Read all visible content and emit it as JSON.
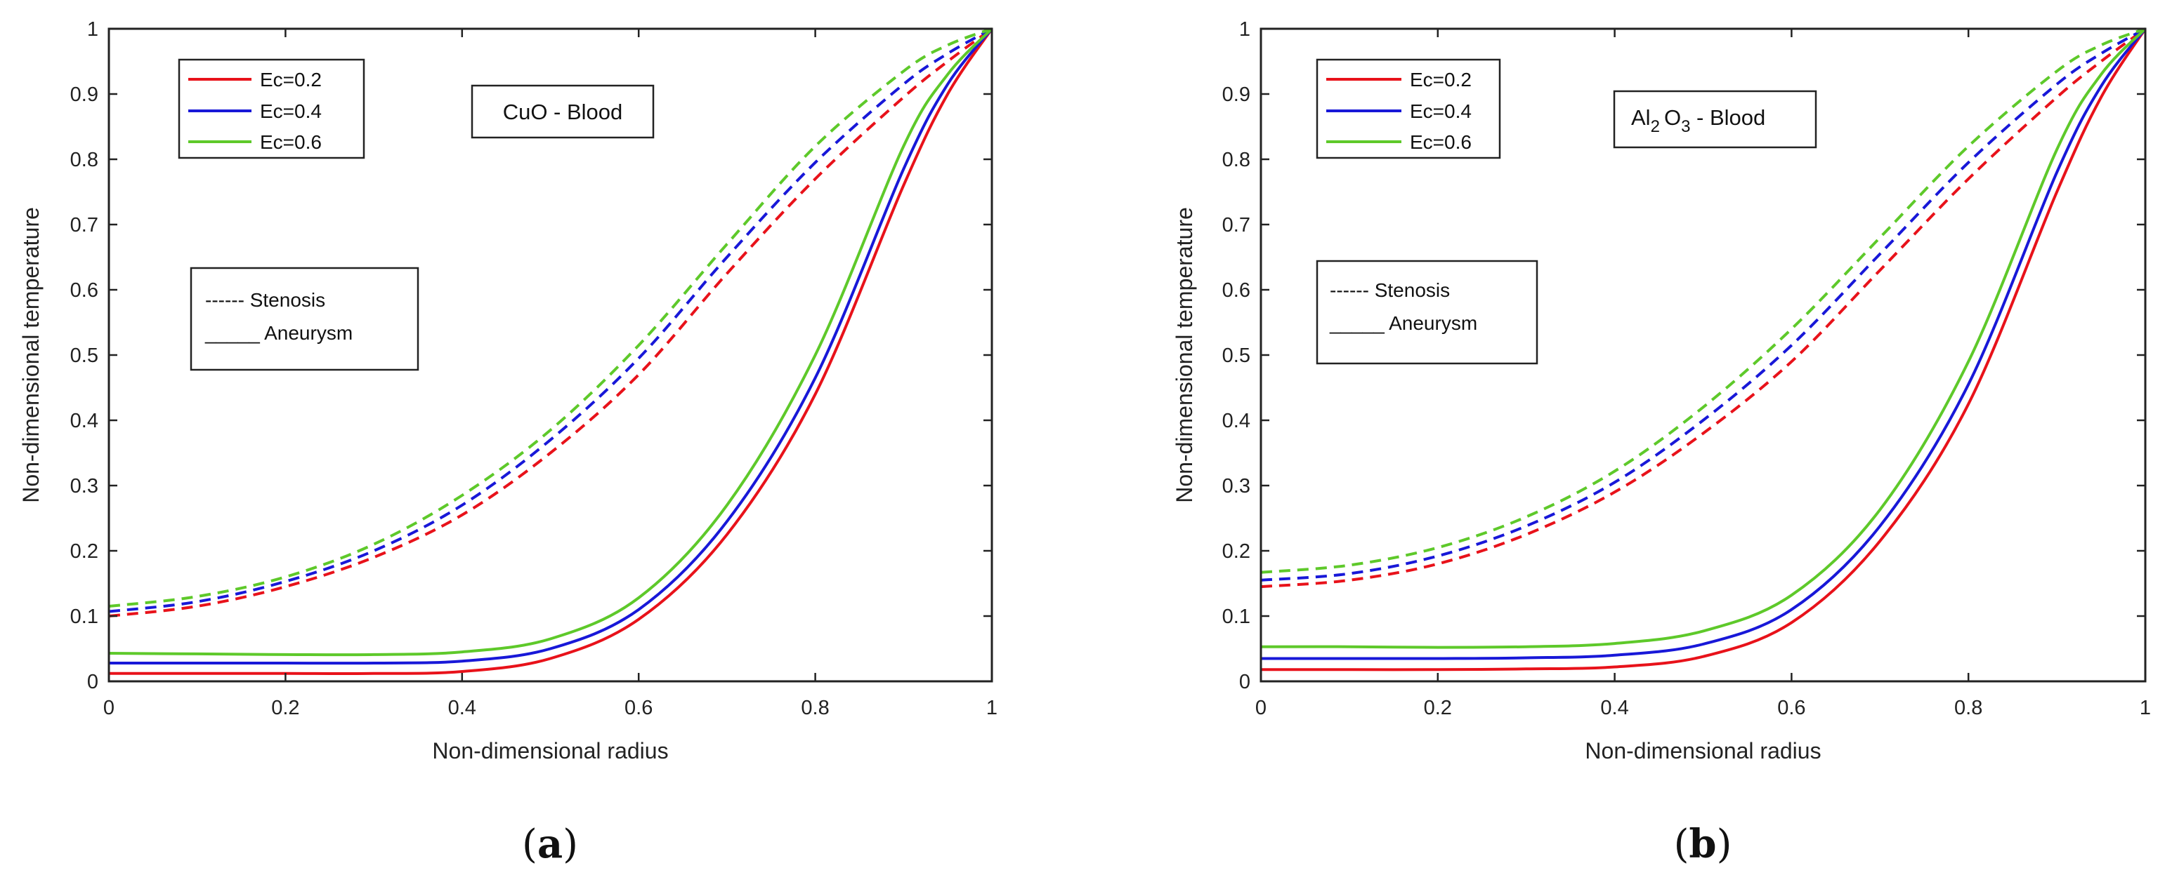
{
  "colors": {
    "ec02": "#e8121a",
    "ec04": "#1818d8",
    "ec06": "#5ec92a",
    "axis": "#222222"
  },
  "chart_data": [
    {
      "type": "line",
      "panel_label": "a",
      "annotation": "CuO - Blood",
      "xlabel": "Non-dimensional radius",
      "ylabel": "Non-dimensional temperature",
      "xlim": [
        0,
        1
      ],
      "ylim": [
        0,
        1
      ],
      "xticks": [
        "0",
        "0.2",
        "0.4",
        "0.6",
        "0.8",
        "1"
      ],
      "yticks": [
        "0",
        "0.1",
        "0.2",
        "0.3",
        "0.4",
        "0.5",
        "0.6",
        "0.7",
        "0.8",
        "0.9",
        "1"
      ],
      "legend": [
        "Ec=0.2",
        "Ec=0.4",
        "Ec=0.6"
      ],
      "style_legend": [
        "------ Stenosis",
        "_____ Aneurysm"
      ],
      "x": [
        0,
        0.1,
        0.2,
        0.3,
        0.4,
        0.5,
        0.6,
        0.7,
        0.8,
        0.9,
        0.95,
        1.0
      ],
      "series": [
        {
          "name": "Ec=0.2",
          "style": "Stenosis",
          "values": [
            0.1,
            0.115,
            0.145,
            0.19,
            0.255,
            0.35,
            0.47,
            0.625,
            0.77,
            0.895,
            0.95,
            1.0
          ]
        },
        {
          "name": "Ec=0.4",
          "style": "Stenosis",
          "values": [
            0.107,
            0.122,
            0.153,
            0.2,
            0.27,
            0.37,
            0.495,
            0.65,
            0.795,
            0.915,
            0.962,
            1.0
          ]
        },
        {
          "name": "Ec=0.6",
          "style": "Stenosis",
          "values": [
            0.115,
            0.13,
            0.16,
            0.21,
            0.285,
            0.385,
            0.515,
            0.67,
            0.82,
            0.935,
            0.975,
            1.0
          ]
        },
        {
          "name": "Ec=0.2",
          "style": "Aneurysm",
          "values": [
            0.012,
            0.012,
            0.012,
            0.012,
            0.015,
            0.035,
            0.095,
            0.225,
            0.44,
            0.76,
            0.9,
            1.0
          ]
        },
        {
          "name": "Ec=0.4",
          "style": "Aneurysm",
          "values": [
            0.028,
            0.028,
            0.028,
            0.028,
            0.031,
            0.05,
            0.11,
            0.245,
            0.465,
            0.785,
            0.915,
            1.0
          ]
        },
        {
          "name": "Ec=0.6",
          "style": "Aneurysm",
          "values": [
            0.043,
            0.042,
            0.041,
            0.041,
            0.045,
            0.065,
            0.128,
            0.27,
            0.5,
            0.82,
            0.93,
            1.0
          ]
        }
      ]
    },
    {
      "type": "line",
      "panel_label": "b",
      "annotation_main": "Al",
      "annotation_sub1": "2",
      "annotation_mid": "O",
      "annotation_sub2": "3",
      "annotation_tail": " - Blood",
      "xlabel": "Non-dimensional radius",
      "ylabel": "Non-dimensional temperature",
      "xlim": [
        0,
        1
      ],
      "ylim": [
        0,
        1
      ],
      "xticks": [
        "0",
        "0.2",
        "0.4",
        "0.6",
        "0.8",
        "1"
      ],
      "yticks": [
        "0",
        "0.1",
        "0.2",
        "0.3",
        "0.4",
        "0.5",
        "0.6",
        "0.7",
        "0.8",
        "0.9",
        "1"
      ],
      "legend": [
        "Ec=0.2",
        "Ec=0.4",
        "Ec=0.6"
      ],
      "style_legend": [
        "------ Stenosis",
        "_____ Aneurysm"
      ],
      "x": [
        0,
        0.1,
        0.2,
        0.3,
        0.4,
        0.5,
        0.6,
        0.7,
        0.8,
        0.9,
        0.95,
        1.0
      ],
      "series": [
        {
          "name": "Ec=0.2",
          "style": "Stenosis",
          "values": [
            0.145,
            0.155,
            0.18,
            0.225,
            0.29,
            0.38,
            0.49,
            0.63,
            0.77,
            0.895,
            0.95,
            1.0
          ]
        },
        {
          "name": "Ec=0.4",
          "style": "Stenosis",
          "values": [
            0.155,
            0.165,
            0.192,
            0.238,
            0.305,
            0.4,
            0.515,
            0.655,
            0.795,
            0.915,
            0.962,
            1.0
          ]
        },
        {
          "name": "Ec=0.6",
          "style": "Stenosis",
          "values": [
            0.167,
            0.178,
            0.205,
            0.252,
            0.322,
            0.42,
            0.54,
            0.68,
            0.82,
            0.935,
            0.975,
            1.0
          ]
        },
        {
          "name": "Ec=0.2",
          "style": "Aneurysm",
          "values": [
            0.018,
            0.018,
            0.018,
            0.019,
            0.022,
            0.038,
            0.09,
            0.215,
            0.425,
            0.75,
            0.895,
            1.0
          ]
        },
        {
          "name": "Ec=0.4",
          "style": "Aneurysm",
          "values": [
            0.035,
            0.035,
            0.035,
            0.036,
            0.04,
            0.057,
            0.11,
            0.238,
            0.455,
            0.78,
            0.912,
            1.0
          ]
        },
        {
          "name": "Ec=0.6",
          "style": "Aneurysm",
          "values": [
            0.053,
            0.053,
            0.052,
            0.053,
            0.058,
            0.077,
            0.132,
            0.263,
            0.49,
            0.815,
            0.93,
            1.0
          ]
        }
      ]
    }
  ],
  "captions": {
    "a": {
      "open": "(",
      "label": "a",
      "close": ")"
    },
    "b": {
      "open": "(",
      "label": "b",
      "close": ")"
    }
  }
}
